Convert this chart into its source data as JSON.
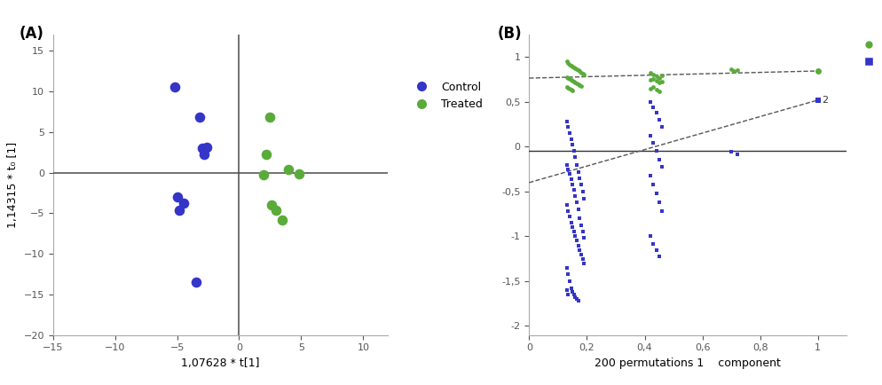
{
  "panel_A": {
    "title": "(A)",
    "xlabel": "1,07628 * t[1]",
    "ylabel": "1,14315 * t₀ [1]",
    "xlim": [
      -15,
      12
    ],
    "ylim": [
      -20,
      17
    ],
    "xticks": [
      -15,
      -10,
      -5,
      0,
      5,
      10
    ],
    "yticks": [
      -20,
      -15,
      -10,
      -5,
      0,
      5,
      10,
      15
    ],
    "control_x": [
      -5.2,
      -3.2,
      -3.0,
      -2.8,
      -2.6,
      -5.0,
      -4.5,
      -4.8,
      -3.5
    ],
    "control_y": [
      10.6,
      6.8,
      3.0,
      2.2,
      3.1,
      -3.0,
      -3.8,
      -4.6,
      -13.5
    ],
    "treated_x": [
      2.0,
      2.2,
      2.5,
      4.0,
      4.8,
      2.6,
      3.0,
      3.5
    ],
    "treated_y": [
      -0.3,
      2.2,
      6.8,
      0.4,
      -0.1,
      -4.0,
      -4.6,
      -5.8
    ],
    "control_color": "#3535c8",
    "treated_color": "#5aab3a",
    "dot_size": 70
  },
  "panel_B": {
    "title": "(B)",
    "xlabel": "200 permutations 1    component",
    "xlim": [
      0,
      1.1
    ],
    "ylim": [
      -2.1,
      1.25
    ],
    "xticks": [
      0,
      0.2,
      0.4,
      0.6,
      0.8,
      1.0
    ],
    "xticklabels": [
      "0",
      "0,2",
      "0,4",
      "0,6",
      "0,8",
      "1"
    ],
    "yticks": [
      -2.0,
      -1.5,
      -1.0,
      -0.5,
      0,
      0.5,
      1.0
    ],
    "yticklabels": [
      "-2",
      "-1,5",
      "-1",
      "-0,5",
      "0",
      "0,5",
      "1"
    ],
    "r2_color": "#5aab3a",
    "q2_color": "#3535c8",
    "r2_actual_x": 1.0,
    "r2_actual_y": 0.845,
    "q2_actual_x": 1.0,
    "q2_actual_y": 0.52,
    "r2_line_x": [
      0.0,
      1.0
    ],
    "r2_line_y": [
      0.765,
      0.845
    ],
    "q2_line_x": [
      0.0,
      1.0
    ],
    "q2_line_y": [
      -0.4,
      0.52
    ],
    "r2_perm_x": [
      0.13,
      0.135,
      0.14,
      0.145,
      0.15,
      0.155,
      0.16,
      0.165,
      0.17,
      0.175,
      0.18,
      0.185,
      0.19,
      0.13,
      0.135,
      0.14,
      0.145,
      0.15,
      0.155,
      0.16,
      0.165,
      0.17,
      0.175,
      0.18,
      0.13,
      0.135,
      0.14,
      0.145,
      0.15,
      0.42,
      0.43,
      0.44,
      0.45,
      0.46,
      0.42,
      0.43,
      0.44,
      0.45,
      0.46,
      0.42,
      0.43,
      0.44,
      0.45,
      0.7,
      0.71,
      0.72
    ],
    "r2_perm_y": [
      0.95,
      0.93,
      0.91,
      0.9,
      0.89,
      0.88,
      0.87,
      0.86,
      0.85,
      0.84,
      0.83,
      0.82,
      0.81,
      0.78,
      0.77,
      0.76,
      0.75,
      0.74,
      0.73,
      0.72,
      0.71,
      0.7,
      0.69,
      0.68,
      0.67,
      0.66,
      0.65,
      0.64,
      0.63,
      0.83,
      0.81,
      0.79,
      0.77,
      0.8,
      0.75,
      0.76,
      0.74,
      0.72,
      0.73,
      0.65,
      0.67,
      0.64,
      0.62,
      0.86,
      0.84,
      0.85
    ],
    "q2_perm_x": [
      0.13,
      0.135,
      0.14,
      0.145,
      0.15,
      0.155,
      0.16,
      0.165,
      0.17,
      0.175,
      0.18,
      0.185,
      0.19,
      0.13,
      0.135,
      0.14,
      0.145,
      0.15,
      0.155,
      0.16,
      0.165,
      0.17,
      0.175,
      0.18,
      0.185,
      0.19,
      0.13,
      0.135,
      0.14,
      0.145,
      0.15,
      0.155,
      0.16,
      0.165,
      0.17,
      0.175,
      0.18,
      0.185,
      0.19,
      0.13,
      0.135,
      0.14,
      0.145,
      0.15,
      0.155,
      0.16,
      0.165,
      0.17,
      0.13,
      0.135,
      0.42,
      0.43,
      0.44,
      0.45,
      0.46,
      0.42,
      0.43,
      0.44,
      0.45,
      0.46,
      0.42,
      0.43,
      0.44,
      0.45,
      0.46,
      0.42,
      0.43,
      0.44,
      0.45,
      0.7,
      0.72
    ],
    "q2_perm_y": [
      0.28,
      0.22,
      0.15,
      0.08,
      0.02,
      -0.05,
      -0.12,
      -0.2,
      -0.28,
      -0.35,
      -0.42,
      -0.5,
      -0.58,
      -0.65,
      -0.72,
      -0.78,
      -0.85,
      -0.9,
      -0.95,
      -1.0,
      -1.05,
      -1.1,
      -1.15,
      -1.2,
      -1.25,
      -1.3,
      -0.2,
      -0.25,
      -0.3,
      -0.36,
      -0.42,
      -0.48,
      -0.55,
      -0.62,
      -0.7,
      -0.8,
      -0.88,
      -0.95,
      -1.02,
      -1.35,
      -1.42,
      -1.5,
      -1.58,
      -1.62,
      -1.65,
      -1.68,
      -1.7,
      -1.72,
      -1.6,
      -1.65,
      0.5,
      0.44,
      0.38,
      0.3,
      0.22,
      0.12,
      0.04,
      -0.05,
      -0.14,
      -0.22,
      -0.32,
      -0.42,
      -0.52,
      -0.62,
      -0.72,
      -1.0,
      -1.08,
      -1.15,
      -1.22,
      -0.06,
      -0.09
    ]
  }
}
